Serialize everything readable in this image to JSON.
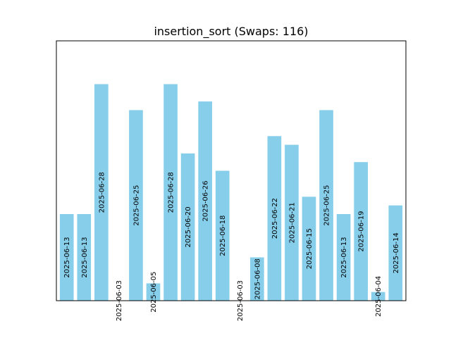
{
  "chart_data": {
    "type": "bar",
    "title": "insertion_sort (Swaps: 116)",
    "xlabel": "",
    "ylabel": "",
    "bar_color": "#87CEEB",
    "axis_color": "#000000",
    "ylim": [
      0,
      30
    ],
    "grid": false,
    "categories": [
      "2025-06-13",
      "2025-06-13",
      "2025-06-28",
      "2025-06-03",
      "2025-06-25",
      "2025-06-05",
      "2025-06-28",
      "2025-06-20",
      "2025-06-26",
      "2025-06-18",
      "2025-06-03",
      "2025-06-08",
      "2025-06-22",
      "2025-06-21",
      "2025-06-15",
      "2025-06-25",
      "2025-06-13",
      "2025-06-19",
      "2025-06-04",
      "2025-06-14"
    ],
    "values": [
      10,
      10,
      25,
      0,
      22,
      2,
      25,
      17,
      23,
      15,
      0,
      5,
      19,
      18,
      12,
      22,
      10,
      16,
      1,
      11
    ]
  }
}
